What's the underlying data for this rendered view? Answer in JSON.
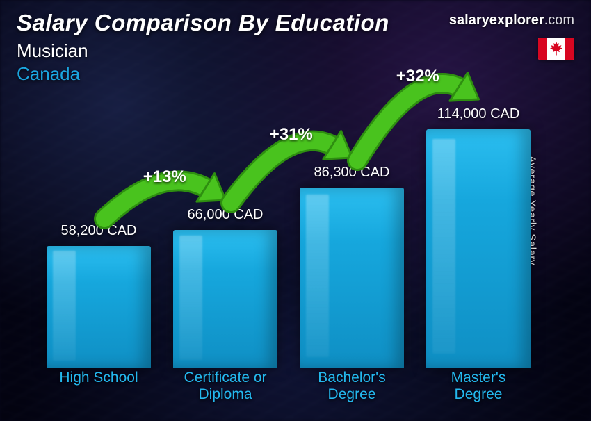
{
  "header": {
    "title": "Salary Comparison By Education",
    "subtitle_role": "Musician",
    "subtitle_country": "Canada",
    "country_color": "#1aa6e0"
  },
  "brand": {
    "bold": "salaryexplorer",
    "rest": ".com"
  },
  "flag": {
    "country": "Canada",
    "red": "#d80621",
    "white": "#ffffff"
  },
  "y_axis_label": "Average Yearly Salary",
  "chart": {
    "type": "bar",
    "currency": "CAD",
    "y_max": 114000,
    "bar_color": "#16a7dd",
    "bar_gradient_top": "#2bbef0",
    "bar_gradient_bottom": "#0f8fc4",
    "label_color": "#24b9ef",
    "value_fontsize": 20,
    "label_fontsize": 21,
    "categories": [
      {
        "name": "High School",
        "lines": [
          "High School"
        ],
        "value": 58200,
        "value_label": "58,200 CAD"
      },
      {
        "name": "Certificate or Diploma",
        "lines": [
          "Certificate or",
          "Diploma"
        ],
        "value": 66000,
        "value_label": "66,000 CAD"
      },
      {
        "name": "Bachelor's Degree",
        "lines": [
          "Bachelor's",
          "Degree"
        ],
        "value": 86300,
        "value_label": "86,300 CAD"
      },
      {
        "name": "Master's Degree",
        "lines": [
          "Master's",
          "Degree"
        ],
        "value": 114000,
        "value_label": "114,000 CAD"
      }
    ],
    "increases": [
      {
        "from": 0,
        "to": 1,
        "label": "+13%"
      },
      {
        "from": 1,
        "to": 2,
        "label": "+31%"
      },
      {
        "from": 2,
        "to": 3,
        "label": "+32%"
      }
    ],
    "increase_arrow": {
      "fill": "#49c31e",
      "stroke": "#2e8f10",
      "text_color": "#ffffff",
      "badge_fontsize": 24
    }
  },
  "colors": {
    "background_base": "#05050f",
    "text_primary": "#ffffff"
  }
}
